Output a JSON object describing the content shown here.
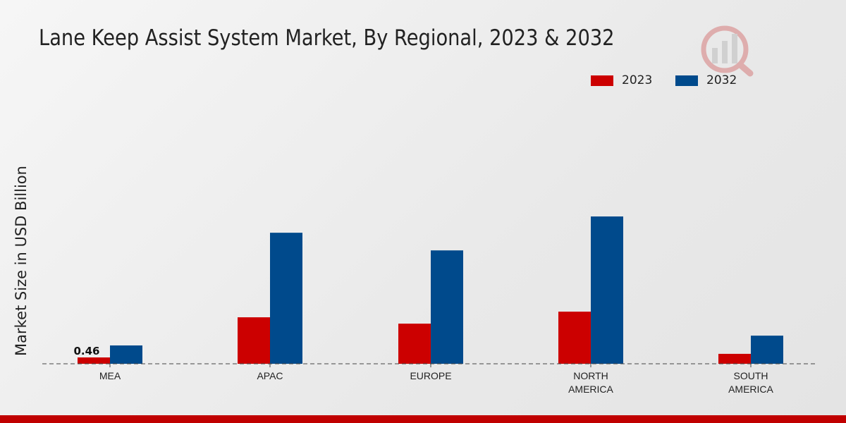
{
  "chart_data": {
    "type": "bar",
    "title": "Lane Keep Assist System Market, By Regional, 2023 & 2032",
    "xlabel": "",
    "ylabel": "Market Size in USD Billion",
    "categories": [
      "MEA",
      "APAC",
      "EUROPE",
      "NORTH AMERICA",
      "SOUTH AMERICA"
    ],
    "category_lines": [
      [
        "MEA"
      ],
      [
        "APAC"
      ],
      [
        "EUROPE"
      ],
      [
        "NORTH",
        "AMERICA"
      ],
      [
        "SOUTH",
        "AMERICA"
      ]
    ],
    "series": [
      {
        "name": "2023",
        "color": "#cc0000",
        "values": [
          0.46,
          3.37,
          2.91,
          3.78,
          0.72
        ]
      },
      {
        "name": "2032",
        "color": "#004a8c",
        "values": [
          1.33,
          9.5,
          8.22,
          10.68,
          2.04
        ]
      }
    ],
    "data_labels": [
      {
        "series": "2023",
        "category": "MEA",
        "text": "0.46"
      }
    ],
    "legend_position": "top-right",
    "grid": false
  }
}
